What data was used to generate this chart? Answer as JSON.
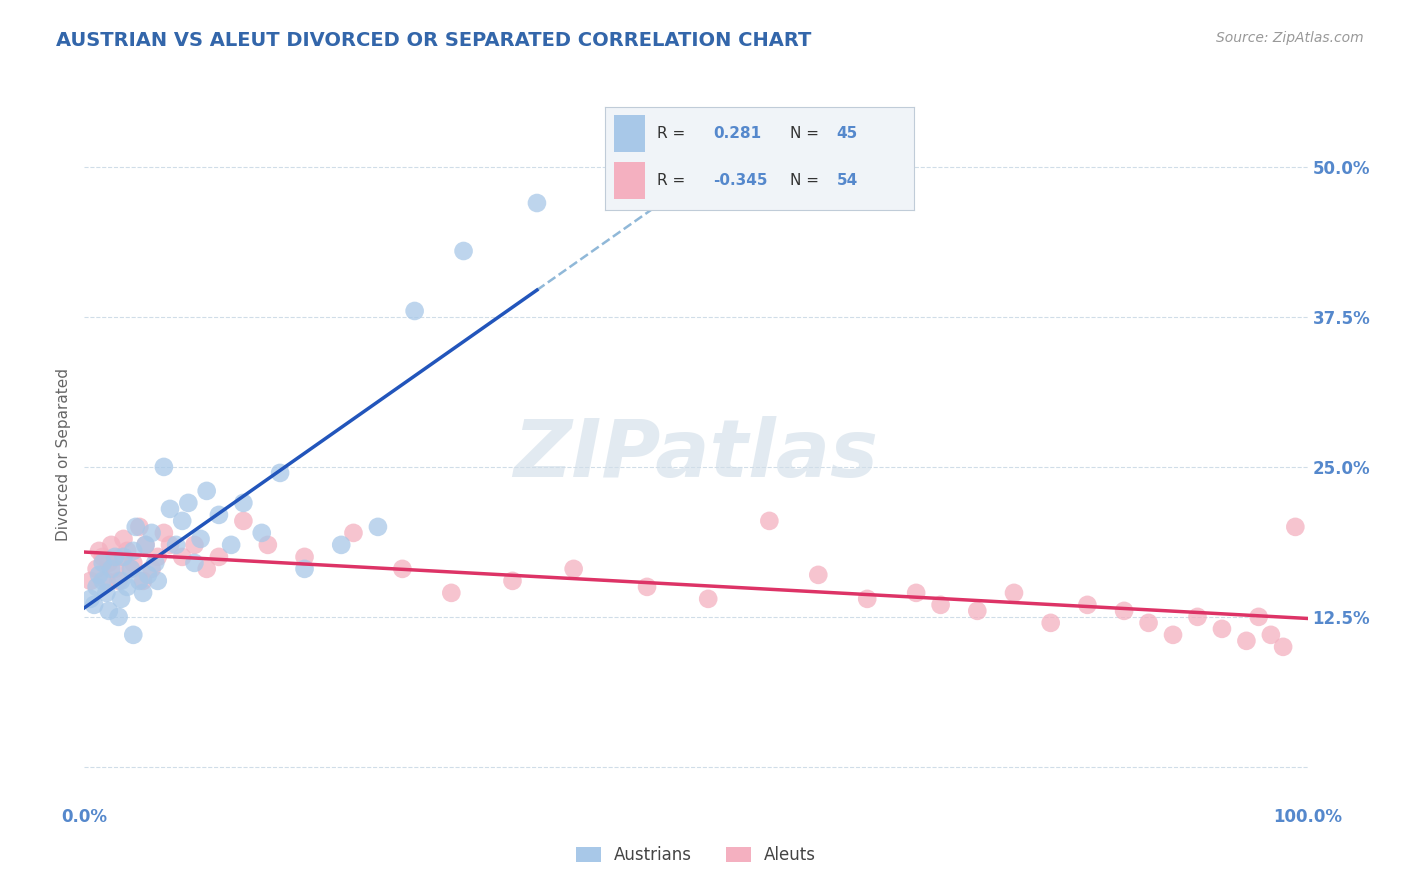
{
  "title": "AUSTRIAN VS ALEUT DIVORCED OR SEPARATED CORRELATION CHART",
  "source": "Source: ZipAtlas.com",
  "ylabel": "Divorced or Separated",
  "watermark": "ZIPatlas",
  "blue_r": 0.281,
  "blue_n": 45,
  "pink_r": -0.345,
  "pink_n": 54,
  "blue_color": "#a8c8e8",
  "pink_color": "#f4b0c0",
  "blue_line_color": "#2255bb",
  "pink_line_color": "#dd3366",
  "dashed_line_color": "#90b8d8",
  "title_color": "#3366aa",
  "tick_color": "#5588cc",
  "grid_color": "#d0dde8",
  "bg_color": "#ffffff",
  "legend_bg": "#f0f4f8",
  "legend_border": "#c0ccd8",
  "ylim_low": -0.03,
  "ylim_high": 0.55,
  "xlim_low": 0.0,
  "xlim_high": 1.0,
  "yticks": [
    0.0,
    0.125,
    0.25,
    0.375,
    0.5
  ],
  "ytick_labels_right": [
    "",
    "12.5%",
    "25.0%",
    "37.5%",
    "50.0%"
  ],
  "xticks": [
    0.0,
    0.5,
    1.0
  ],
  "xtick_labels": [
    "0.0%",
    "",
    "100.0%"
  ],
  "austrians_x": [
    0.005,
    0.008,
    0.01,
    0.012,
    0.015,
    0.015,
    0.018,
    0.02,
    0.022,
    0.025,
    0.028,
    0.03,
    0.03,
    0.032,
    0.035,
    0.038,
    0.04,
    0.04,
    0.042,
    0.045,
    0.048,
    0.05,
    0.052,
    0.055,
    0.058,
    0.06,
    0.065,
    0.07,
    0.075,
    0.08,
    0.085,
    0.09,
    0.095,
    0.1,
    0.11,
    0.12,
    0.13,
    0.145,
    0.16,
    0.18,
    0.21,
    0.24,
    0.27,
    0.31,
    0.37
  ],
  "austrians_y": [
    0.14,
    0.135,
    0.15,
    0.16,
    0.155,
    0.17,
    0.145,
    0.13,
    0.165,
    0.175,
    0.125,
    0.14,
    0.155,
    0.175,
    0.15,
    0.165,
    0.11,
    0.18,
    0.2,
    0.155,
    0.145,
    0.185,
    0.16,
    0.195,
    0.17,
    0.155,
    0.25,
    0.215,
    0.185,
    0.205,
    0.22,
    0.17,
    0.19,
    0.23,
    0.21,
    0.185,
    0.22,
    0.195,
    0.245,
    0.165,
    0.185,
    0.2,
    0.38,
    0.43,
    0.47
  ],
  "aleuts_x": [
    0.005,
    0.01,
    0.012,
    0.015,
    0.018,
    0.02,
    0.022,
    0.025,
    0.028,
    0.03,
    0.032,
    0.035,
    0.038,
    0.04,
    0.045,
    0.048,
    0.05,
    0.055,
    0.06,
    0.065,
    0.07,
    0.08,
    0.09,
    0.1,
    0.11,
    0.13,
    0.15,
    0.18,
    0.22,
    0.26,
    0.3,
    0.35,
    0.4,
    0.46,
    0.51,
    0.56,
    0.6,
    0.64,
    0.68,
    0.7,
    0.73,
    0.76,
    0.79,
    0.82,
    0.85,
    0.87,
    0.89,
    0.91,
    0.93,
    0.95,
    0.96,
    0.97,
    0.98,
    0.99
  ],
  "aleuts_y": [
    0.155,
    0.165,
    0.18,
    0.175,
    0.155,
    0.17,
    0.185,
    0.165,
    0.155,
    0.175,
    0.19,
    0.18,
    0.165,
    0.17,
    0.2,
    0.155,
    0.185,
    0.165,
    0.175,
    0.195,
    0.185,
    0.175,
    0.185,
    0.165,
    0.175,
    0.205,
    0.185,
    0.175,
    0.195,
    0.165,
    0.145,
    0.155,
    0.165,
    0.15,
    0.14,
    0.205,
    0.16,
    0.14,
    0.145,
    0.135,
    0.13,
    0.145,
    0.12,
    0.135,
    0.13,
    0.12,
    0.11,
    0.125,
    0.115,
    0.105,
    0.125,
    0.11,
    0.1,
    0.2
  ]
}
